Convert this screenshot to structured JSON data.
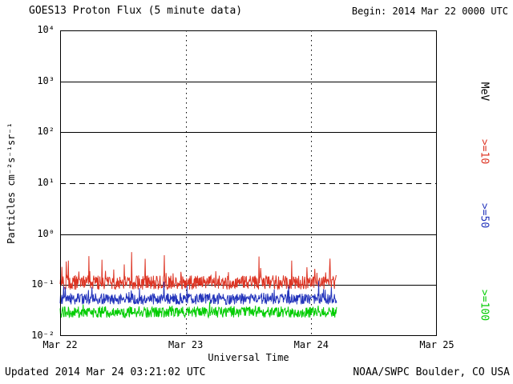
{
  "header": {
    "begin_label": "Begin: 2014 Mar 22 0000 UTC"
  },
  "footer": {
    "updated": "Updated 2014 Mar 24 03:21:02 UTC",
    "source": "NOAA/SWPC Boulder, CO USA"
  },
  "chart_data": {
    "type": "line",
    "title": "GOES13 Proton Flux (5 minute data)",
    "xlabel": "Universal Time",
    "ylabel": "Particles cm⁻²s⁻¹sr⁻¹",
    "y_scale": "log",
    "ylim_log": [
      -2,
      4
    ],
    "xlim_days": [
      0,
      3
    ],
    "y_ticks": [
      {
        "log": 4,
        "label": "10⁴"
      },
      {
        "log": 3,
        "label": "10³"
      },
      {
        "log": 2,
        "label": "10²"
      },
      {
        "log": 1,
        "label": "10¹"
      },
      {
        "log": 0,
        "label": "10⁰"
      },
      {
        "log": -1,
        "label": "10⁻¹"
      },
      {
        "log": -2,
        "label": "10⁻²"
      }
    ],
    "x_ticks": [
      {
        "day": 0,
        "label": "Mar 22"
      },
      {
        "day": 1,
        "label": "Mar 23"
      },
      {
        "day": 2,
        "label": "Mar 24"
      },
      {
        "day": 3,
        "label": "Mar 25"
      }
    ],
    "grid": {
      "solid_h_log": [
        3,
        2,
        0,
        -1
      ],
      "dashed_h_log": [
        1
      ],
      "dotted_v_days": [
        1,
        2
      ]
    },
    "right_axis": {
      "unit_label": "MeV",
      "labels": [
        {
          "text": ">=10",
          "color": "#dd3322"
        },
        {
          "text": ">=50",
          "color": "#2233bb"
        },
        {
          "text": ">=100",
          "color": "#00cc00"
        }
      ]
    },
    "cadence_minutes": 5,
    "data_start_day": 0,
    "data_end_day": 2.2,
    "series": [
      {
        "name": "Protons >=10 MeV",
        "color": "#dd3322",
        "median_flux": 0.11,
        "log_median": -0.95,
        "log_jitter": 0.14,
        "spike_prob": 0.06,
        "spike_log_max": 0.55
      },
      {
        "name": "Protons >=50 MeV",
        "color": "#2233bb",
        "median_flux": 0.054,
        "log_median": -1.27,
        "log_jitter": 0.11,
        "spike_prob": 0.04,
        "spike_log_max": 0.3
      },
      {
        "name": "Protons >=100 MeV",
        "color": "#00cc00",
        "median_flux": 0.03,
        "log_median": -1.53,
        "log_jitter": 0.11,
        "spike_prob": 0.03,
        "spike_log_max": 0.22
      }
    ]
  }
}
